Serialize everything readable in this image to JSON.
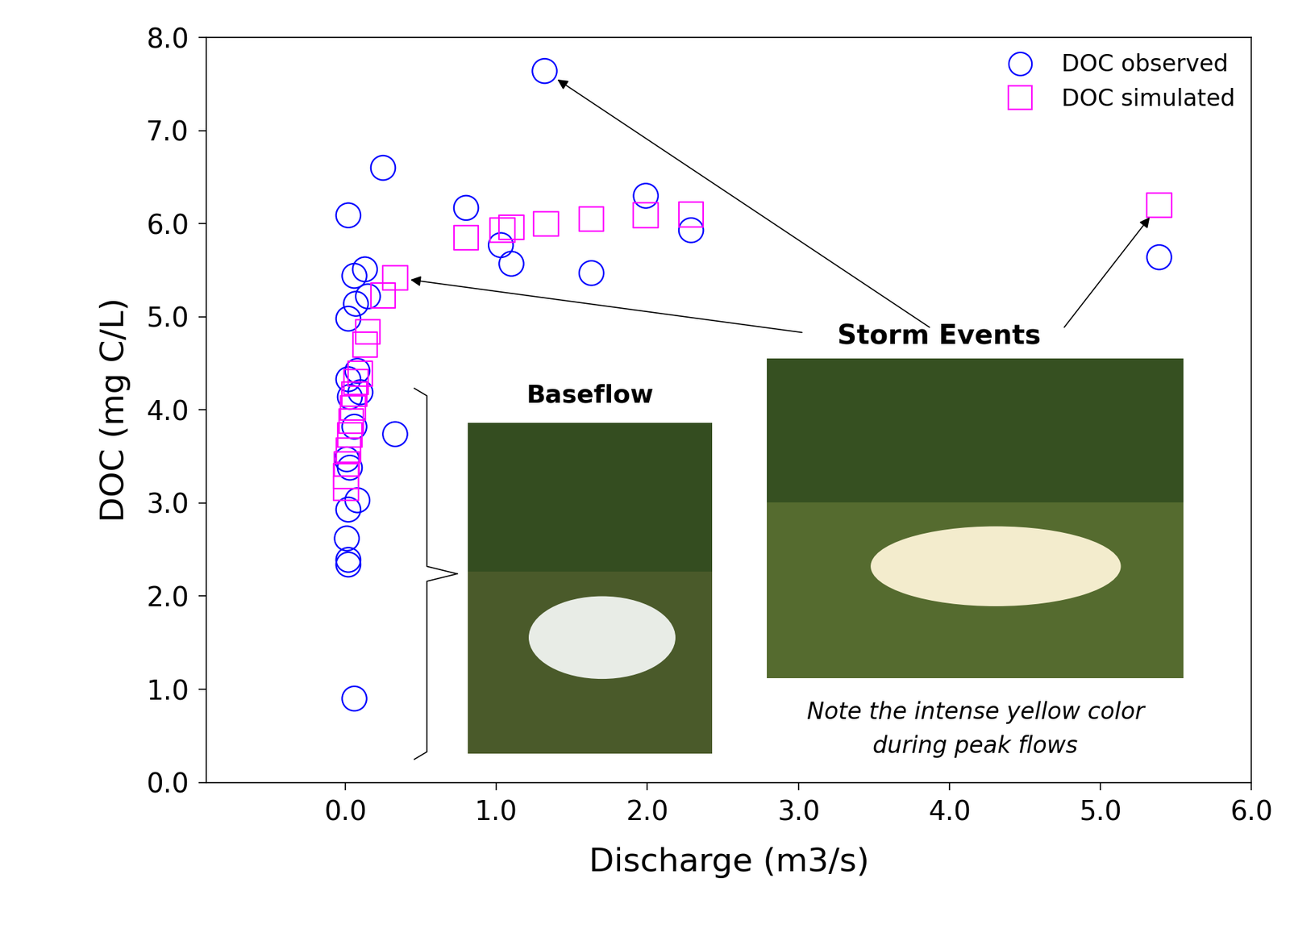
{
  "chart_data": {
    "type": "scatter",
    "x_label": "Discharge (m3/s)",
    "y_label": "DOC (mg C/L)",
    "xlim": [
      -0.92,
      6.0
    ],
    "ylim": [
      0.0,
      8.0
    ],
    "xticks": [
      {
        "value": 0,
        "label": "0.0"
      },
      {
        "value": 1,
        "label": "1.0"
      },
      {
        "value": 2,
        "label": "2.0"
      },
      {
        "value": 3,
        "label": "3.0"
      },
      {
        "value": 4,
        "label": "4.0"
      },
      {
        "value": 5,
        "label": "5.0"
      },
      {
        "value": 6,
        "label": "6.0"
      }
    ],
    "yticks": [
      {
        "value": 0,
        "label": "0.0"
      },
      {
        "value": 1,
        "label": "1.0"
      },
      {
        "value": 2,
        "label": "2.0"
      },
      {
        "value": 3,
        "label": "3.0"
      },
      {
        "value": 4,
        "label": "4.0"
      },
      {
        "value": 5,
        "label": "5.0"
      },
      {
        "value": 6,
        "label": "6.0"
      },
      {
        "value": 7,
        "label": "7.0"
      },
      {
        "value": 8,
        "label": "8.0"
      }
    ],
    "grid": false,
    "legend": "upper right",
    "series": [
      {
        "name": "DOC observed",
        "color": "#0000ff",
        "marker": "circle",
        "x": [
          1.32,
          0.25,
          0.02,
          0.8,
          1.99,
          2.29,
          1.03,
          1.1,
          1.63,
          5.39,
          0.06,
          0.13,
          0.07,
          0.15,
          0.02,
          0.33,
          0.08,
          0.1,
          0.02,
          0.03,
          0.06,
          0.01,
          0.03,
          0.08,
          0.02,
          0.01,
          0.02,
          0.02,
          0.06
        ],
        "values": [
          7.64,
          6.6,
          6.09,
          6.17,
          6.3,
          5.93,
          5.77,
          5.57,
          5.47,
          5.64,
          5.44,
          5.51,
          5.14,
          5.22,
          4.98,
          3.74,
          4.42,
          4.19,
          4.33,
          4.14,
          3.82,
          3.47,
          3.38,
          3.03,
          2.93,
          2.62,
          2.39,
          2.34,
          0.9
        ]
      },
      {
        "name": "DOC simulated",
        "color": "#ff00ff",
        "marker": "square",
        "x": [
          5.39,
          2.29,
          1.99,
          1.63,
          1.33,
          1.1,
          1.04,
          0.8,
          0.33,
          0.25,
          0.15,
          0.13,
          0.1,
          0.07,
          0.06,
          0.05,
          0.04,
          0.03,
          0.02,
          0.01,
          0.005,
          0.005
        ],
        "values": [
          6.2,
          6.1,
          6.09,
          6.05,
          6.0,
          5.96,
          5.93,
          5.85,
          5.42,
          5.23,
          4.84,
          4.7,
          4.39,
          4.3,
          4.17,
          4.02,
          3.88,
          3.73,
          3.57,
          3.42,
          3.29,
          3.16
        ]
      }
    ],
    "annotations": {
      "storm_events": "Storm Events",
      "baseflow": "Baseflow",
      "note": [
        "Note the intense yellow color",
        "during peak flows"
      ]
    }
  }
}
